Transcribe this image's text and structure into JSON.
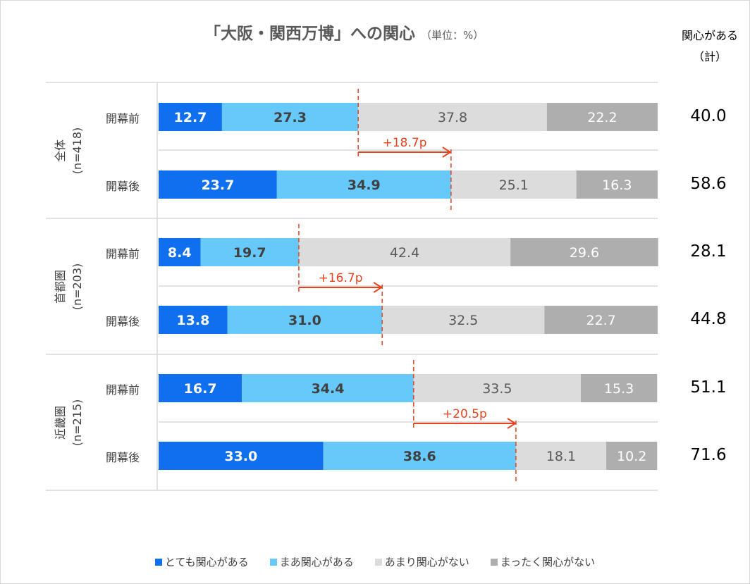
{
  "chart_data": {
    "type": "bar",
    "orientation": "horizontal-stacked-100",
    "title": "「大阪・関西万博」への関心",
    "unit_label": "（単位：%）",
    "total_header": [
      "関心がある",
      "（計）"
    ],
    "xlim": [
      0,
      100
    ],
    "series": [
      {
        "name": "とても関心がある",
        "color": "#0f6fee"
      },
      {
        "name": "まあ関心がある",
        "color": "#66c9fa"
      },
      {
        "name": "あまり関心がない",
        "color": "#dcdcdc"
      },
      {
        "name": "まったく関心がない",
        "color": "#aeaeae"
      }
    ],
    "groups": [
      {
        "label": "全体",
        "n": "(n=418)",
        "change": "+18.7p",
        "rows": [
          {
            "label": "開幕前",
            "values": [
              12.7,
              27.3,
              37.8,
              22.2
            ],
            "total": "40.0"
          },
          {
            "label": "開幕後",
            "values": [
              23.7,
              34.9,
              25.1,
              16.3
            ],
            "total": "58.6"
          }
        ]
      },
      {
        "label": "首都圏",
        "n": "(n=203)",
        "change": "+16.7p",
        "rows": [
          {
            "label": "開幕前",
            "values": [
              8.4,
              19.7,
              42.4,
              29.6
            ],
            "total": "28.1"
          },
          {
            "label": "開幕後",
            "values": [
              13.8,
              31.0,
              32.5,
              22.7
            ],
            "total": "44.8"
          }
        ]
      },
      {
        "label": "近畿圏",
        "n": "(n=215)",
        "change": "+20.5p",
        "rows": [
          {
            "label": "開幕前",
            "values": [
              16.7,
              34.4,
              33.5,
              15.3
            ],
            "total": "51.1"
          },
          {
            "label": "開幕後",
            "values": [
              33.0,
              38.6,
              18.1,
              10.2
            ],
            "total": "71.6"
          }
        ]
      }
    ],
    "accent_color": "#e8431f"
  }
}
